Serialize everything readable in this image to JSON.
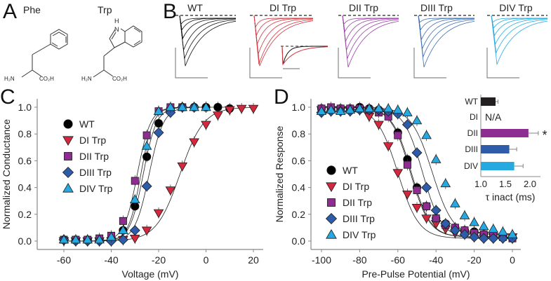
{
  "panel_labels": {
    "A": "A",
    "B": "B",
    "C": "C",
    "D": "D"
  },
  "panel_a": {
    "molecules": [
      {
        "name": "Phe",
        "amine": "H₂N",
        "acid": "CO₂H"
      },
      {
        "name": "Trp",
        "amine": "H₂N",
        "acid": "CO₂H",
        "ring_nh": "H",
        "ring_n": "N"
      }
    ]
  },
  "panel_b": {
    "traces": [
      {
        "title": "WT",
        "color": "#111111"
      },
      {
        "title": "DI Trp",
        "color": "#d4353d"
      },
      {
        "title": "DII Trp",
        "color": "#9b3fa8"
      },
      {
        "title": "DIII Trp",
        "color": "#3f6fb5"
      },
      {
        "title": "DIV Trp",
        "color": "#29abe2"
      }
    ],
    "inset_colors": [
      "#111111",
      "#d4353d"
    ]
  },
  "chart_data": [
    {
      "type": "scatter",
      "title": "",
      "xlabel": "Voltage (mV)",
      "ylabel": "Normalized Conductance",
      "xlim": [
        -70,
        25
      ],
      "ylim": [
        0,
        1.0
      ],
      "xticks": [
        "-60",
        "-40",
        "-20",
        "0",
        "20"
      ],
      "xtick_values": [
        -60,
        -40,
        -20,
        0,
        20
      ],
      "yticks": [
        "0.0",
        "0.2",
        "0.4",
        "0.6",
        "0.8",
        "1.0"
      ],
      "ytick_values": [
        0,
        0.2,
        0.4,
        0.6,
        0.8,
        1.0
      ],
      "legend": "left",
      "fit": "boltzmann-activation",
      "series": [
        {
          "name": "WT",
          "marker": "circle",
          "color": "#000000",
          "v_half": -26.5,
          "k": 2.8,
          "x": [
            -60,
            -55,
            -50,
            -45,
            -40,
            -35,
            -30,
            -25,
            -20,
            -15,
            -10,
            -5,
            0,
            5,
            10
          ],
          "y": [
            0.01,
            0.01,
            0.01,
            0.01,
            0.02,
            0.08,
            0.26,
            0.63,
            0.88,
            0.99,
            1.0,
            1.0,
            1.0,
            1.0,
            0.99
          ]
        },
        {
          "name": "DI Trp",
          "marker": "triangle-down",
          "color": "#d4283f",
          "v_half": -11,
          "k": 5.0,
          "x": [
            -60,
            -55,
            -50,
            -45,
            -40,
            -35,
            -30,
            -25,
            -20,
            -15,
            -10,
            -5,
            0,
            5,
            10,
            15,
            20
          ],
          "y": [
            0.0,
            0.0,
            0.0,
            0.0,
            0.0,
            0.01,
            0.02,
            0.08,
            0.21,
            0.38,
            0.56,
            0.74,
            0.87,
            0.94,
            0.98,
            0.99,
            0.99
          ]
        },
        {
          "name": "DII Trp",
          "marker": "square",
          "color": "#8e2c91",
          "v_half": -29,
          "k": 2.8,
          "x": [
            -60,
            -55,
            -50,
            -45,
            -40,
            -35,
            -30,
            -25,
            -20,
            -15,
            -10
          ],
          "y": [
            0.01,
            0.01,
            0.01,
            0.02,
            0.04,
            0.15,
            0.45,
            0.79,
            0.97,
            1.0,
            1.0
          ]
        },
        {
          "name": "DIII Trp",
          "marker": "diamond",
          "color": "#2e5ca8",
          "v_half": -24,
          "k": 3.0,
          "x": [
            -60,
            -55,
            -50,
            -45,
            -40,
            -35,
            -30,
            -25,
            -20,
            -15,
            -10,
            -5
          ],
          "y": [
            0.01,
            0.0,
            0.0,
            0.0,
            0.0,
            0.01,
            0.08,
            0.41,
            0.81,
            0.96,
            1.0,
            1.0
          ]
        },
        {
          "name": "DIV Trp",
          "marker": "triangle-up",
          "color": "#26a9e0",
          "v_half": -27.5,
          "k": 2.6,
          "x": [
            -60,
            -55,
            -50,
            -45,
            -40,
            -35,
            -30,
            -25,
            -20,
            -15,
            -10,
            -5,
            0
          ],
          "y": [
            0.01,
            0.01,
            0.01,
            0.01,
            0.03,
            0.08,
            0.31,
            0.71,
            0.97,
            1.0,
            1.0,
            1.0,
            1.0
          ]
        }
      ]
    },
    {
      "type": "scatter",
      "title": "",
      "xlabel": "Pre-Pulse Potential (mV)",
      "ylabel": "Normalized Response",
      "xlim": [
        -105,
        5
      ],
      "ylim": [
        0,
        1.0
      ],
      "xticks": [
        "-100",
        "-80",
        "-60",
        "-40",
        "-20",
        "0"
      ],
      "xtick_values": [
        -100,
        -80,
        -60,
        -40,
        -20,
        0
      ],
      "yticks": [
        "0.0",
        "0.2",
        "0.4",
        "0.6",
        "0.8",
        "1.0"
      ],
      "ytick_values": [
        0,
        0.2,
        0.4,
        0.6,
        0.8,
        1.0
      ],
      "legend": "bottom-left",
      "fit": "boltzmann-inactivation",
      "series": [
        {
          "name": "WT",
          "marker": "circle",
          "color": "#000000",
          "v_half": -53,
          "k": 5.0,
          "base": 0.03,
          "x": [
            -100,
            -95,
            -90,
            -85,
            -80,
            -75,
            -70,
            -65,
            -60,
            -55,
            -50,
            -45,
            -40,
            -35,
            -30,
            -25,
            -20,
            -15,
            -10,
            -5,
            0
          ],
          "y": [
            0.99,
            0.99,
            0.99,
            0.99,
            1.0,
            0.99,
            0.98,
            0.96,
            0.81,
            0.61,
            0.4,
            0.26,
            0.17,
            0.13,
            0.1,
            0.08,
            0.07,
            0.05,
            0.05,
            0.04,
            0.03
          ]
        },
        {
          "name": "DI Trp",
          "marker": "triangle-down",
          "color": "#d4283f",
          "v_half": -60,
          "k": 5.5,
          "base": 0.02,
          "x": [
            -100,
            -95,
            -90,
            -85,
            -80,
            -75,
            -70,
            -65,
            -60,
            -55,
            -50,
            -45,
            -40,
            -35,
            -30,
            -25,
            -20,
            -15,
            -10,
            -5,
            0
          ],
          "y": [
            0.98,
            0.98,
            0.98,
            0.98,
            0.98,
            0.93,
            0.87,
            0.71,
            0.51,
            0.35,
            0.25,
            0.17,
            0.13,
            0.09,
            0.06,
            0.05,
            0.04,
            0.04,
            0.03,
            0.03,
            0.03
          ]
        },
        {
          "name": "DII Trp",
          "marker": "square",
          "color": "#8e2c91",
          "v_half": -53.5,
          "k": 5.0,
          "base": 0.03,
          "x": [
            -100,
            -95,
            -90,
            -85,
            -80,
            -75,
            -70,
            -65,
            -60,
            -55,
            -50,
            -45,
            -40,
            -35,
            -30,
            -25,
            -20,
            -15,
            -10,
            -5,
            0
          ],
          "y": [
            0.99,
            1.0,
            0.99,
            0.99,
            0.99,
            0.98,
            0.96,
            0.93,
            0.79,
            0.57,
            0.38,
            0.26,
            0.17,
            0.12,
            0.1,
            0.08,
            0.06,
            0.05,
            0.04,
            0.03,
            0.02
          ]
        },
        {
          "name": "DIII Trp",
          "marker": "diamond",
          "color": "#2e5ca8",
          "v_half": -47,
          "k": 5.0,
          "base": 0.02,
          "x": [
            -100,
            -95,
            -90,
            -85,
            -80,
            -75,
            -70,
            -65,
            -60,
            -55,
            -50,
            -45,
            -40,
            -35,
            -30,
            -25,
            -20,
            -15,
            -10,
            -5,
            0
          ],
          "y": [
            0.96,
            0.97,
            0.97,
            0.97,
            0.98,
            0.98,
            0.98,
            0.97,
            0.95,
            0.87,
            0.66,
            0.4,
            0.23,
            0.13,
            0.08,
            0.05,
            0.03,
            0.02,
            0.02,
            0.02,
            0.02
          ]
        },
        {
          "name": "DIV Trp",
          "marker": "triangle-up",
          "color": "#26a9e0",
          "v_half": -42,
          "k": 5.5,
          "base": 0.03,
          "x": [
            -100,
            -95,
            -90,
            -85,
            -80,
            -75,
            -70,
            -65,
            -60,
            -55,
            -50,
            -45,
            -40,
            -35,
            -30,
            -25,
            -20,
            -15,
            -10,
            -5,
            0
          ],
          "y": [
            0.97,
            0.98,
            0.97,
            0.98,
            0.99,
            0.99,
            0.99,
            0.99,
            0.98,
            0.96,
            0.9,
            0.79,
            0.61,
            0.43,
            0.28,
            0.19,
            0.14,
            0.11,
            0.09,
            0.07,
            0.05
          ]
        }
      ]
    },
    {
      "type": "bar",
      "orientation": "horizontal",
      "xlabel": "τ inact (ms)",
      "xlim": [
        1.0,
        2.2
      ],
      "xticks": [
        "1.0",
        "1.5",
        "2.0"
      ],
      "xtick_values": [
        1.0,
        1.5,
        2.0
      ],
      "categories": [
        "WT",
        "DI",
        "DII",
        "DIII",
        "DIV"
      ],
      "values": [
        1.3,
        null,
        1.97,
        1.58,
        1.68
      ],
      "errors": [
        0.05,
        null,
        0.2,
        0.15,
        0.18
      ],
      "colors": [
        "#231f20",
        null,
        "#8e2c91",
        "#2e5ca8",
        "#26a9e0"
      ],
      "annotations": [
        {
          "category": "DI",
          "text": "N/A"
        },
        {
          "category": "DII",
          "text": "*"
        }
      ]
    }
  ]
}
